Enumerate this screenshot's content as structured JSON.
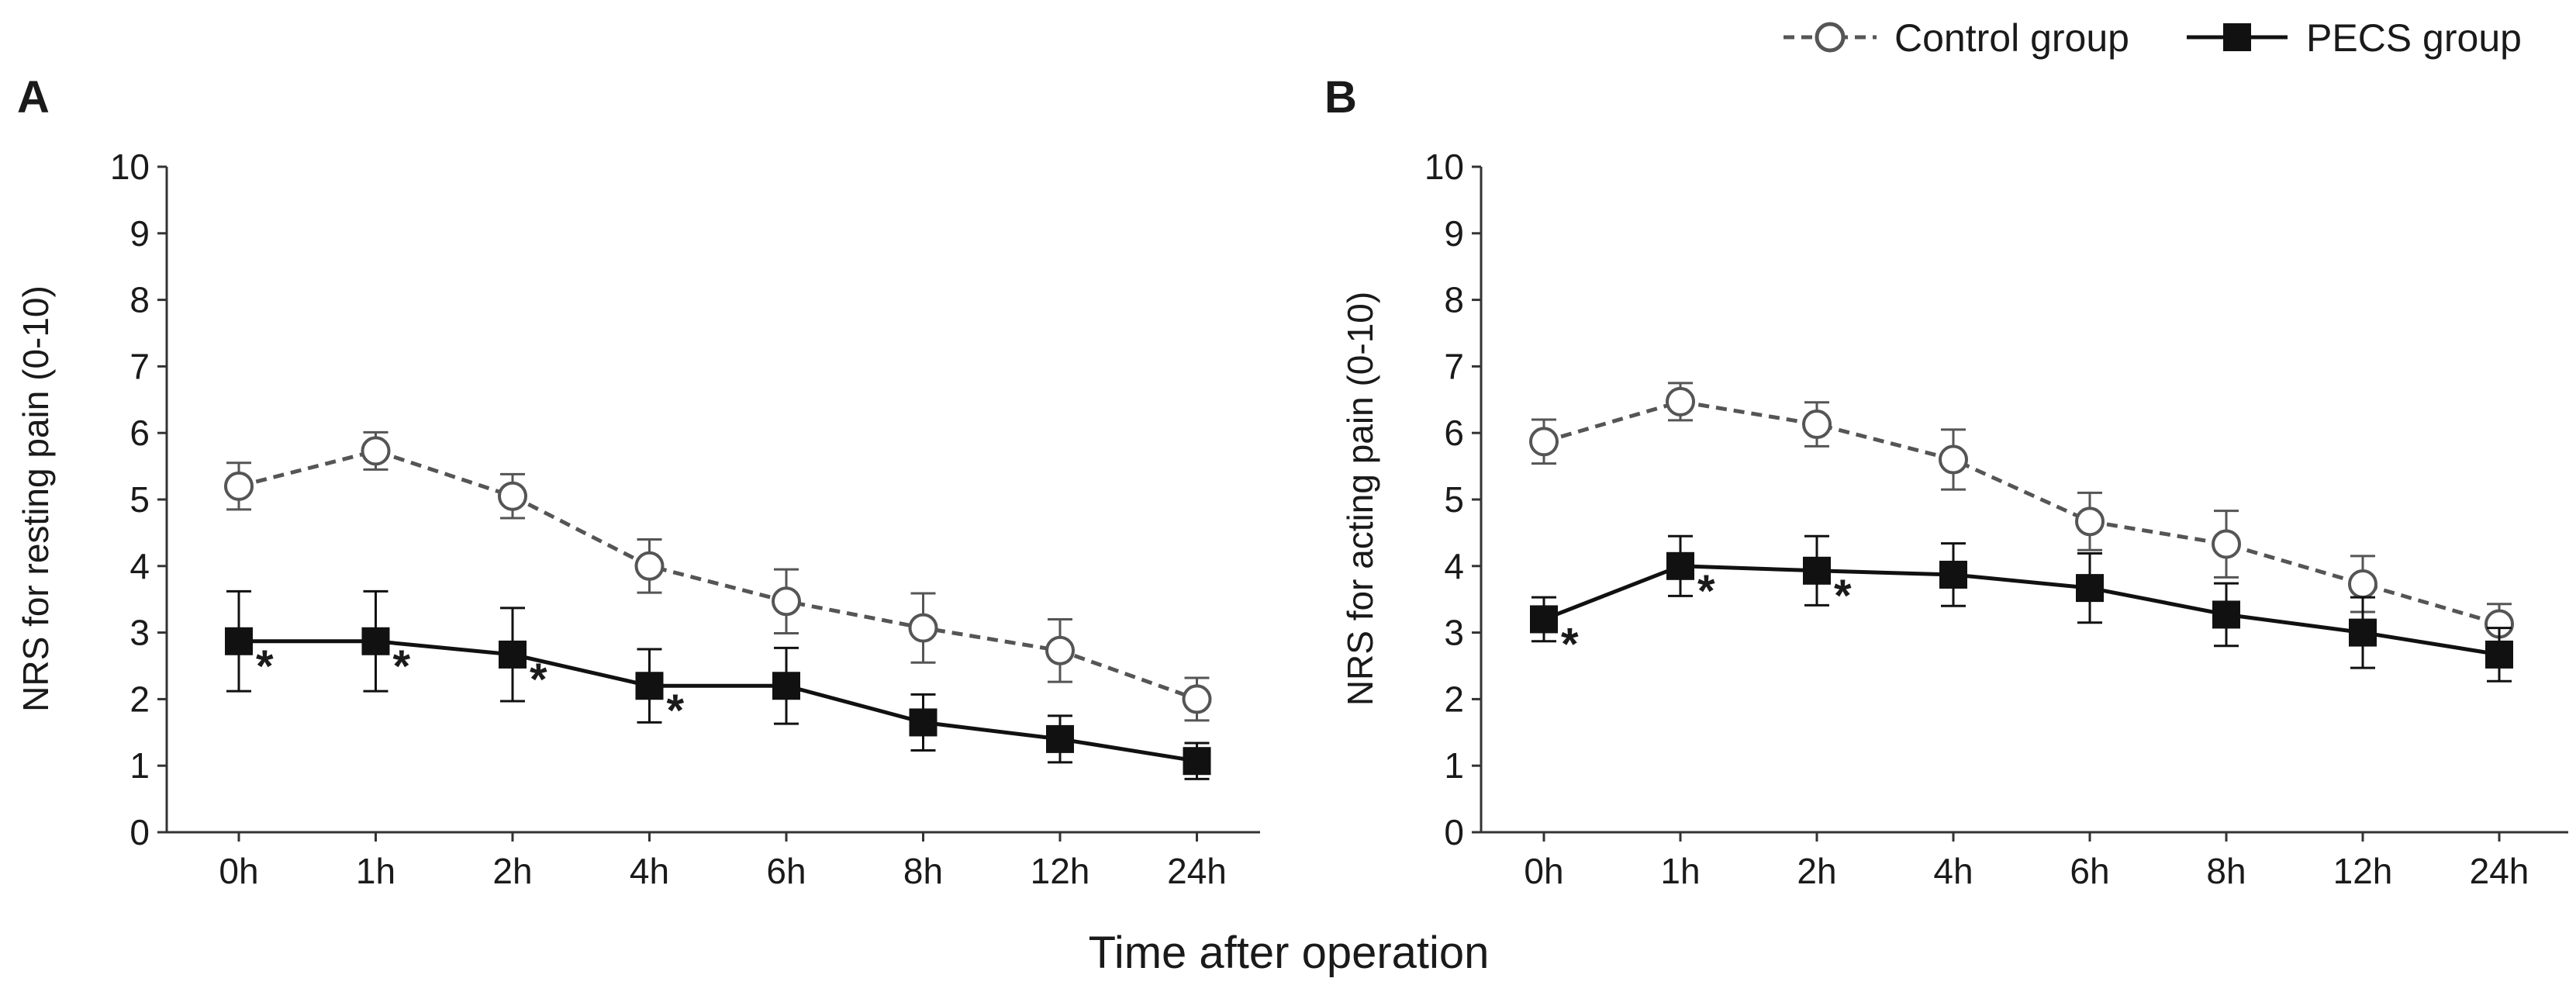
{
  "figure": {
    "xlabel": "Time after operation",
    "legend": [
      {
        "name": "Control group",
        "style": "dashed",
        "marker": "open-circle"
      },
      {
        "name": "PECS group",
        "style": "solid",
        "marker": "filled-square"
      }
    ],
    "colors": {
      "control": "#555555",
      "pecs": "#111111",
      "axis": "#333333"
    }
  },
  "chart_data": [
    {
      "type": "line",
      "panel": "A",
      "title": "",
      "ylabel": "NRS for resting pain (0-10)",
      "xlabel": "Time after operation",
      "ylim": [
        0,
        10
      ],
      "yticks": [
        "0",
        "1",
        "2",
        "3",
        "4",
        "5",
        "6",
        "7",
        "8",
        "9",
        "10"
      ],
      "categories": [
        "0h",
        "1h",
        "2h",
        "4h",
        "6h",
        "8h",
        "12h",
        "24h"
      ],
      "series": [
        {
          "name": "Control group",
          "values": [
            5.2,
            5.73,
            5.05,
            4.0,
            3.47,
            3.07,
            2.73,
            2.0
          ],
          "err": [
            0.35,
            0.28,
            0.33,
            0.4,
            0.48,
            0.52,
            0.47,
            0.32
          ]
        },
        {
          "name": "PECS group",
          "values": [
            2.87,
            2.87,
            2.67,
            2.2,
            2.2,
            1.65,
            1.4,
            1.07
          ],
          "err": [
            0.75,
            0.75,
            0.7,
            0.55,
            0.57,
            0.42,
            0.35,
            0.27
          ],
          "significance": [
            "*",
            "*",
            "*",
            "*",
            "",
            "",
            "",
            ""
          ]
        }
      ]
    },
    {
      "type": "line",
      "panel": "B",
      "title": "",
      "ylabel": "NRS for acting pain (0-10)",
      "xlabel": "Time after operation",
      "ylim": [
        0,
        10
      ],
      "yticks": [
        "0",
        "1",
        "2",
        "3",
        "4",
        "5",
        "6",
        "7",
        "8",
        "9",
        "10"
      ],
      "categories": [
        "0h",
        "1h",
        "2h",
        "4h",
        "6h",
        "8h",
        "12h",
        "24h"
      ],
      "series": [
        {
          "name": "Control group",
          "values": [
            5.87,
            6.47,
            6.13,
            5.6,
            4.67,
            4.33,
            3.73,
            3.13
          ],
          "err": [
            0.33,
            0.28,
            0.33,
            0.45,
            0.43,
            0.5,
            0.42,
            0.3
          ]
        },
        {
          "name": "PECS group",
          "values": [
            3.2,
            4.0,
            3.93,
            3.87,
            3.67,
            3.27,
            3.0,
            2.67
          ],
          "err": [
            0.33,
            0.45,
            0.52,
            0.47,
            0.52,
            0.47,
            0.53,
            0.4
          ],
          "significance": [
            "*",
            "*",
            "*",
            "",
            "",
            "",
            "",
            ""
          ]
        }
      ]
    }
  ]
}
